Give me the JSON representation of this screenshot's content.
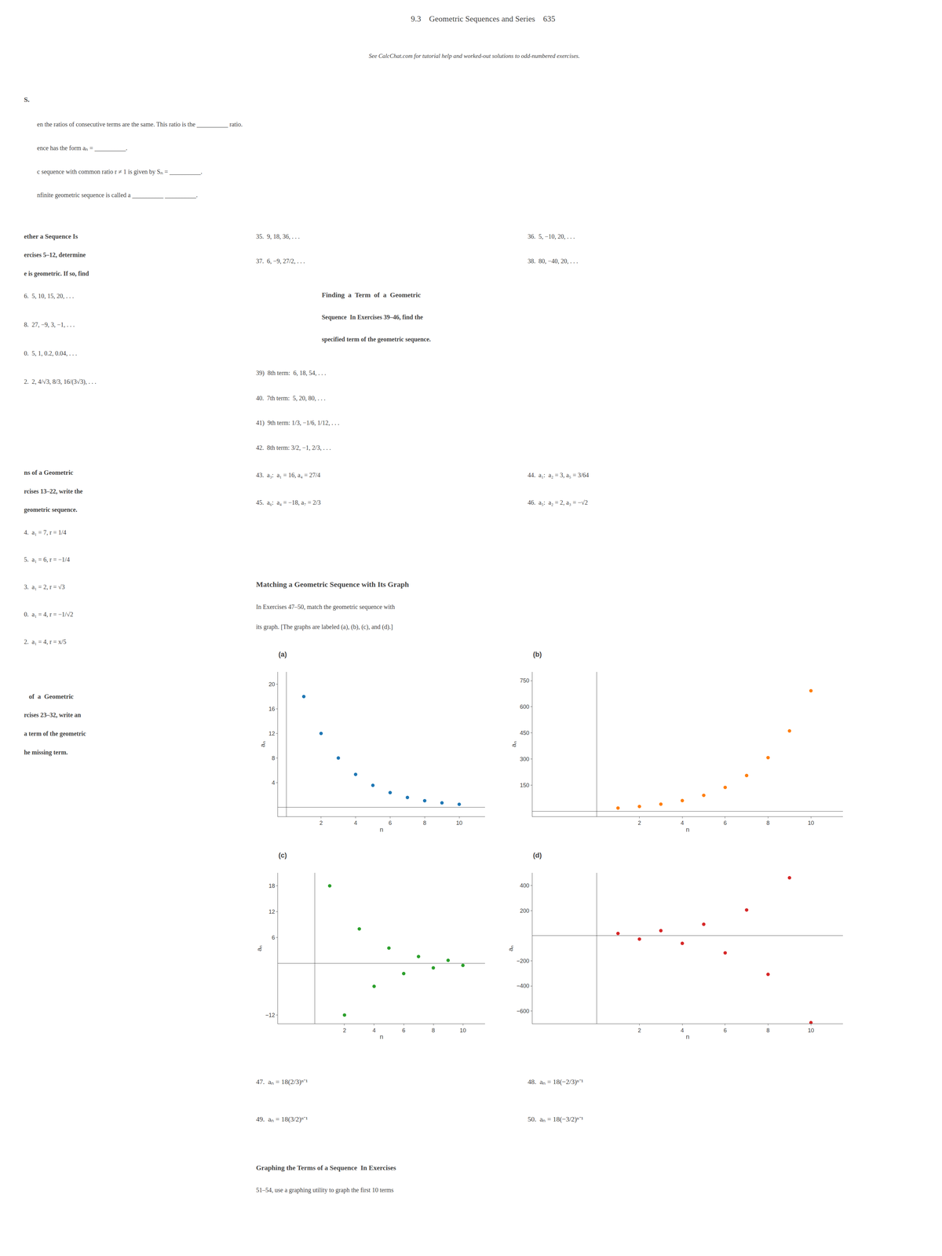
{
  "chart_data": [
    {
      "type": "scatter",
      "title": "(a)",
      "x_label": "n",
      "y_label": "aₙ",
      "x": [
        1,
        2,
        3,
        4,
        5,
        6,
        7,
        8,
        9,
        10
      ],
      "values": [
        18.0,
        12.0,
        8.0,
        5.333,
        3.556,
        2.37,
        1.58,
        1.053,
        0.702,
        0.468
      ],
      "xlim": [
        -0.5,
        11.5
      ],
      "ylim": [
        -1.5,
        22
      ],
      "xticks": [
        2,
        4,
        6,
        8,
        10
      ],
      "yticks": [
        4,
        8,
        12,
        16,
        20
      ],
      "grid": false
    },
    {
      "type": "scatter",
      "title": "(b)",
      "x_label": "n",
      "y_label": "aₙ",
      "x": [
        1,
        2,
        3,
        4,
        5,
        6,
        7,
        8,
        9,
        10
      ],
      "values": [
        18.0,
        27.0,
        40.5,
        60.75,
        91.125,
        136.69,
        205.03,
        307.55,
        461.32,
        691.97
      ],
      "xlim": [
        -3,
        11.5
      ],
      "ylim": [
        -30,
        800
      ],
      "xticks": [
        2,
        4,
        6,
        8,
        10
      ],
      "yticks": [
        150,
        300,
        450,
        600,
        750
      ],
      "grid": false
    },
    {
      "type": "scatter",
      "title": "(c)",
      "x_label": "n",
      "y_label": "aₙ",
      "x": [
        1,
        2,
        3,
        4,
        5,
        6,
        7,
        8,
        9,
        10
      ],
      "values": [
        18.0,
        -12.0,
        8.0,
        -5.333,
        3.556,
        -2.37,
        1.58,
        -1.053,
        0.702,
        -0.468
      ],
      "xlim": [
        -2.5,
        11.5
      ],
      "ylim": [
        -14,
        21
      ],
      "xticks": [
        2,
        4,
        6,
        8,
        10
      ],
      "yticks": [
        -12,
        6,
        12,
        18
      ],
      "grid": false
    },
    {
      "type": "scatter",
      "title": "(d)",
      "x_label": "n",
      "y_label": "aₙ",
      "x": [
        1,
        2,
        3,
        4,
        5,
        6,
        7,
        8,
        9,
        10
      ],
      "values": [
        18.0,
        -27.0,
        40.5,
        -60.75,
        91.125,
        -136.69,
        205.03,
        -307.55,
        461.32,
        -691.97
      ],
      "xlim": [
        -3,
        11.5
      ],
      "ylim": [
        -700,
        500
      ],
      "xticks": [
        2,
        4,
        6,
        8,
        10
      ],
      "yticks": [
        -600,
        -400,
        -200,
        200,
        400
      ],
      "grid": false
    }
  ],
  "annotations": [
    "9.3    Geometric Sequences and Series    635",
    "See CalcChat.com for tutorial help and worked-out solutions to odd-numbered exercises.",
    "S.",
    "en the ratios of consecutive terms are the same. This ratio is the __________ ratio.",
    "ence has the form aₙ = __________.",
    "c sequence with common ratio r ≠ 1 is given by Sₙ = __________.",
    "nfinite geometric sequence is called a __________ __________.",
    "ether a Sequence Is",
    "ercises 5–12, determine",
    "e is geometric. If so, find",
    "6.  5, 10, 15, 20, . . .",
    "8.  27, −9, 3, −1, . . .",
    "0.  5, 1, 0.2, 0.04, . . .",
    "2.  2, 4/√3, 8/3, 16/(3√3), . . .",
    "ns of a Geometric",
    "rcises 13–22, write the",
    "geometric sequence.",
    "4.  a₁ = 7, r = 1/4",
    "5.  a₁ = 6, r = −1/4",
    "3.  a₁ = 2, r = √3",
    "0.  a₁ = 4, r = −1/√2",
    "2.  a₁ = 4, r = x/5",
    "   of  a  Geometric",
    "rcises 23–32, write an",
    "a term of the geometric",
    "he missing term.",
    "35.  9, 18, 36, . . .",
    "37.  6, −9, 27/2, . . .",
    "36.  5, −10, 20, . . .",
    "38.  80, −40, 20, . . .",
    "Finding  a  Term  of  a  Geometric",
    "Sequence  In Exercises 39–46, find the",
    "specified term of the geometric sequence.",
    "39)  8th term:  6, 18, 54, . . .",
    "40.  7th term:  5, 20, 80, . . .",
    "41)  9th term: 1/3, −1/6, 1/12, . . .",
    "42.  8th term: 3/2, −1, 2/3, . . .",
    "43.  a₃:  a₁ = 16, a₄ = 27/4",
    "44.  a₁:  a₂ = 3, a₅ = 3/64",
    "45.  a₆:  a₄ = −18, a₇ = 2/3",
    "46.  a₅:  a₂ = 2, a₃ = −√2",
    "Matching a Geometric Sequence with Its Graph",
    "In Exercises 47–50, match the geometric sequence with",
    "its graph. [The graphs are labeled (a), (b), (c), and (d).]",
    "47.  aₙ = 18(2/3)ⁿ⁻¹",
    "48.  aₙ = 18(−2/3)ⁿ⁻¹",
    "49.  aₙ = 18(3/2)ⁿ⁻¹",
    "50.  aₙ = 18(−3/2)ⁿ⁻¹",
    "Graphing the Terms of a Sequence  In Exercises",
    "51–54, use a graphing utility to graph the first 10 terms"
  ]
}
